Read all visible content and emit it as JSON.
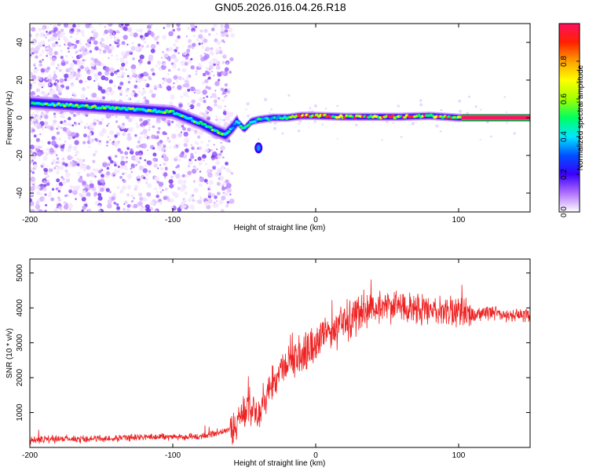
{
  "figure": {
    "title": "GN05.2026.016.04.26.R18"
  },
  "chart_data": [
    {
      "type": "heatmap",
      "name": "spectrogram",
      "xlabel": "Height of straight line (km)",
      "ylabel": "Frequency (Hz)",
      "xlim": [
        -200,
        150
      ],
      "ylim": [
        -50,
        50
      ],
      "xticks": [
        -200,
        -100,
        0,
        100
      ],
      "xtick_labels": [
        "-200",
        "-100",
        "0",
        "100"
      ],
      "yticks": [
        -40,
        -20,
        0,
        20,
        40
      ],
      "ytick_labels": [
        "-40",
        "-20",
        "0",
        "20",
        "40"
      ],
      "colorbar": {
        "label": "Normalized spectral amplitude",
        "range": [
          0,
          1
        ],
        "ticks": [
          0.0,
          0.2,
          0.4,
          0.6,
          0.8
        ],
        "tick_labels": [
          "0.0",
          "0.2",
          "0.4",
          "0.6",
          "0.8"
        ],
        "colors": [
          "#ffffff",
          "#b070ff",
          "#3a00ff",
          "#0050ff",
          "#00e8ff",
          "#00ff60",
          "#a0ff00",
          "#ffff00",
          "#ffa000",
          "#ff2000",
          "#ff1060"
        ]
      },
      "ridge": {
        "description": "peak frequency track (km, Hz)",
        "x": [
          -200,
          -180,
          -160,
          -140,
          -120,
          -100,
          -90,
          -80,
          -70,
          -63,
          -58,
          -55,
          -50,
          -45,
          -40,
          -30,
          -20,
          -10,
          0,
          20,
          40,
          60,
          80,
          100,
          150
        ],
        "y": [
          8,
          7,
          6,
          5,
          4,
          3,
          0,
          -3,
          -7,
          -9,
          -5,
          -2,
          -6,
          -2,
          -1,
          0,
          0,
          1,
          1,
          0.5,
          0.5,
          0.5,
          1,
          0,
          0
        ]
      },
      "side_blob": {
        "x": -40,
        "y": -16
      }
    },
    {
      "type": "line",
      "name": "snr",
      "xlabel": "Height of straight line (km)",
      "ylabel": "SNR (10 * v/v)",
      "xlim": [
        -200,
        150
      ],
      "ylim": [
        0,
        5400
      ],
      "xticks": [
        -200,
        -100,
        0,
        100
      ],
      "xtick_labels": [
        "-200",
        "-100",
        "0",
        "100"
      ],
      "yticks": [
        1000,
        2000,
        3000,
        4000,
        5000
      ],
      "ytick_labels": [
        "1000",
        "2000",
        "3000",
        "4000",
        "5000"
      ],
      "color": "#ee2222",
      "series_points": [
        [
          -200,
          200
        ],
        [
          -180,
          250
        ],
        [
          -160,
          250
        ],
        [
          -140,
          260
        ],
        [
          -120,
          300
        ],
        [
          -100,
          300
        ],
        [
          -80,
          320
        ],
        [
          -60,
          500
        ],
        [
          -45,
          1200
        ],
        [
          -40,
          1000
        ],
        [
          -35,
          1400
        ],
        [
          -30,
          1900
        ],
        [
          -20,
          2400
        ],
        [
          -10,
          2700
        ],
        [
          0,
          3000
        ],
        [
          10,
          3300
        ],
        [
          20,
          3600
        ],
        [
          30,
          3800
        ],
        [
          40,
          4000
        ],
        [
          50,
          4050
        ],
        [
          60,
          4000
        ],
        [
          70,
          4000
        ],
        [
          80,
          3950
        ],
        [
          90,
          3900
        ],
        [
          100,
          3900
        ],
        [
          110,
          3850
        ],
        [
          120,
          3850
        ],
        [
          130,
          3800
        ],
        [
          140,
          3800
        ],
        [
          150,
          3800
        ]
      ]
    }
  ]
}
